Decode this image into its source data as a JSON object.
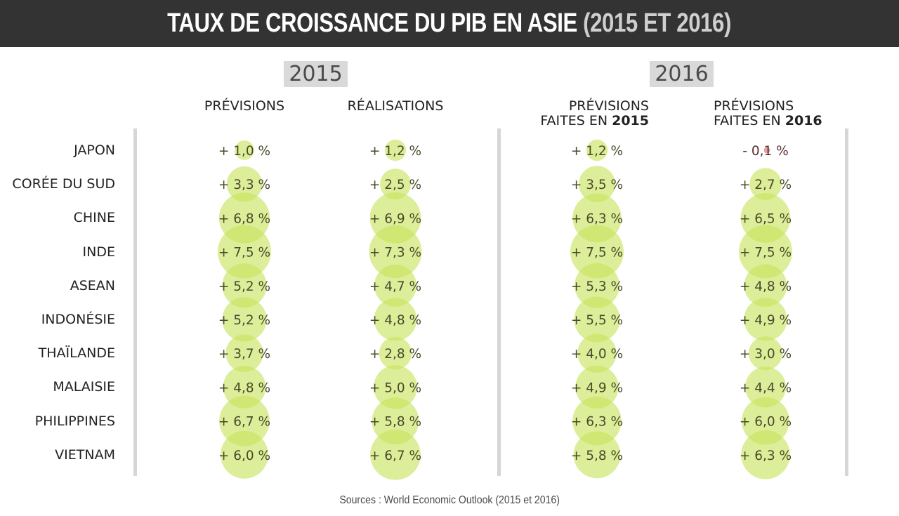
{
  "title": {
    "main": "TAUX DE CROISSANCE DU PIB EN ASIE",
    "years": "(2015 ET 2016)"
  },
  "year_labels": [
    "2015",
    "2016"
  ],
  "column_headers": {
    "c1": "PRÉVISIONS",
    "c2": "RÉALISATIONS",
    "c3_line1": "PRÉVISIONS",
    "c3_line2_prefix": "FAITES EN ",
    "c3_line2_year": "2015",
    "c4_line1": "PRÉVISIONS",
    "c4_line2_prefix": "FAITES EN ",
    "c4_line2_year": "2016"
  },
  "source": "Sources : World Economic Outlook (2015 et 2016)",
  "colors": {
    "positive": "#c8e35c",
    "negative": "#e08a8a",
    "title_bar": "#333333"
  },
  "chart_data": {
    "type": "bubble-table",
    "title": "TAUX DE CROISSANCE DU PIB EN ASIE (2015 ET 2016)",
    "categories": [
      "JAPON",
      "CORÉE DU SUD",
      "CHINE",
      "INDE",
      "ASEAN",
      "INDONÉSIE",
      "THAÏLANDE",
      "MALAISIE",
      "PHILIPPINES",
      "VIETNAM"
    ],
    "series": [
      {
        "name": "2015 PRÉVISIONS",
        "values": [
          1.0,
          3.3,
          6.8,
          7.5,
          5.2,
          5.2,
          3.7,
          4.8,
          6.7,
          6.0
        ],
        "labels": [
          "+ 1,0 %",
          "+ 3,3 %",
          "+ 6,8 %",
          "+ 7,5 %",
          "+ 5,2 %",
          "+ 5,2 %",
          "+ 3,7 %",
          "+ 4,8 %",
          "+ 6,7 %",
          "+ 6,0 %"
        ]
      },
      {
        "name": "2015 RÉALISATIONS",
        "values": [
          1.2,
          2.5,
          6.9,
          7.3,
          4.7,
          4.8,
          2.8,
          5.0,
          5.8,
          6.7
        ],
        "labels": [
          "+ 1,2 %",
          "+ 2,5 %",
          "+ 6,9 %",
          "+ 7,3 %",
          "+ 4,7 %",
          "+ 4,8 %",
          "+ 2,8 %",
          "+ 5,0 %",
          "+ 5,8 %",
          "+ 6,7 %"
        ]
      },
      {
        "name": "2016 PRÉVISIONS FAITES EN 2015",
        "values": [
          1.2,
          3.5,
          6.3,
          7.5,
          5.3,
          5.5,
          4.0,
          4.9,
          6.3,
          5.8
        ],
        "labels": [
          "+ 1,2 %",
          "+ 3,5 %",
          "+ 6,3 %",
          "+ 7,5 %",
          "+ 5,3 %",
          "+ 5,5 %",
          "+ 4,0 %",
          "+ 4,9 %",
          "+ 6,3 %",
          "+ 5,8 %"
        ]
      },
      {
        "name": "2016 PRÉVISIONS FAITES EN 2016",
        "values": [
          -0.1,
          2.7,
          6.5,
          7.5,
          4.8,
          4.9,
          3.0,
          4.4,
          6.0,
          6.3
        ],
        "labels": [
          "- 0,1 %",
          "+ 2,7 %",
          "+ 6,5 %",
          "+ 7,5 %",
          "+ 4,8 %",
          "+ 4,9 %",
          "+ 3,0 %",
          "+ 4,4 %",
          "+ 6,0 %",
          "+ 6,3 %"
        ]
      }
    ]
  }
}
